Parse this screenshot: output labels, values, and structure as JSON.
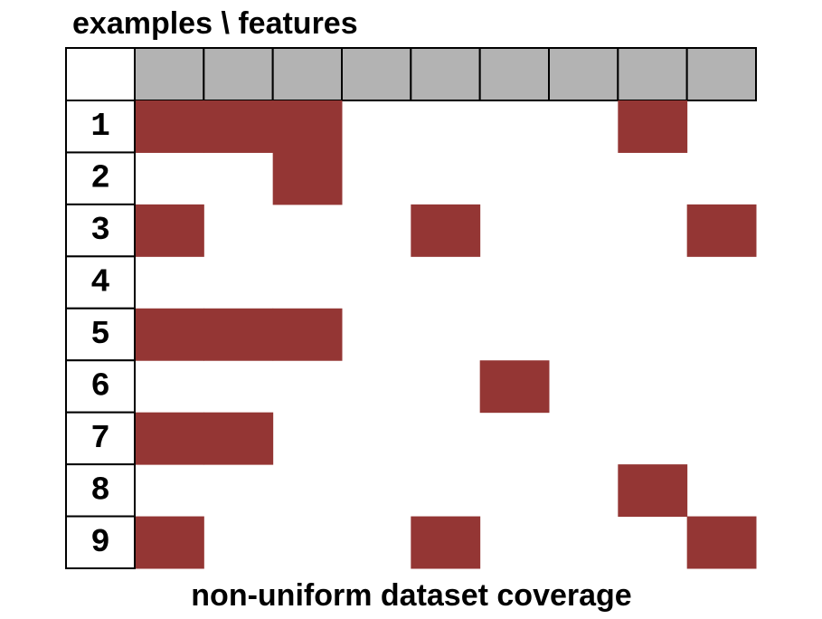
{
  "title": "examples \\ features",
  "caption": "non-uniform dataset coverage",
  "rows": [
    {
      "label": "1",
      "cells": [
        1,
        1,
        1,
        0,
        0,
        0,
        0,
        1,
        0
      ]
    },
    {
      "label": "2",
      "cells": [
        0,
        0,
        1,
        0,
        0,
        0,
        0,
        0,
        0
      ]
    },
    {
      "label": "3",
      "cells": [
        1,
        0,
        0,
        0,
        1,
        0,
        0,
        0,
        1
      ]
    },
    {
      "label": "4",
      "cells": [
        0,
        0,
        0,
        0,
        0,
        0,
        0,
        0,
        0
      ]
    },
    {
      "label": "5",
      "cells": [
        1,
        1,
        1,
        0,
        0,
        0,
        0,
        0,
        0
      ]
    },
    {
      "label": "6",
      "cells": [
        0,
        0,
        0,
        0,
        0,
        1,
        0,
        0,
        0
      ]
    },
    {
      "label": "7",
      "cells": [
        1,
        1,
        0,
        0,
        0,
        0,
        0,
        0,
        0
      ]
    },
    {
      "label": "8",
      "cells": [
        0,
        0,
        0,
        0,
        0,
        0,
        0,
        1,
        0
      ]
    },
    {
      "label": "9",
      "cells": [
        1,
        0,
        0,
        0,
        1,
        0,
        0,
        0,
        1
      ]
    }
  ],
  "fill_color": "#943634",
  "header_color": "#b3b3b3"
}
